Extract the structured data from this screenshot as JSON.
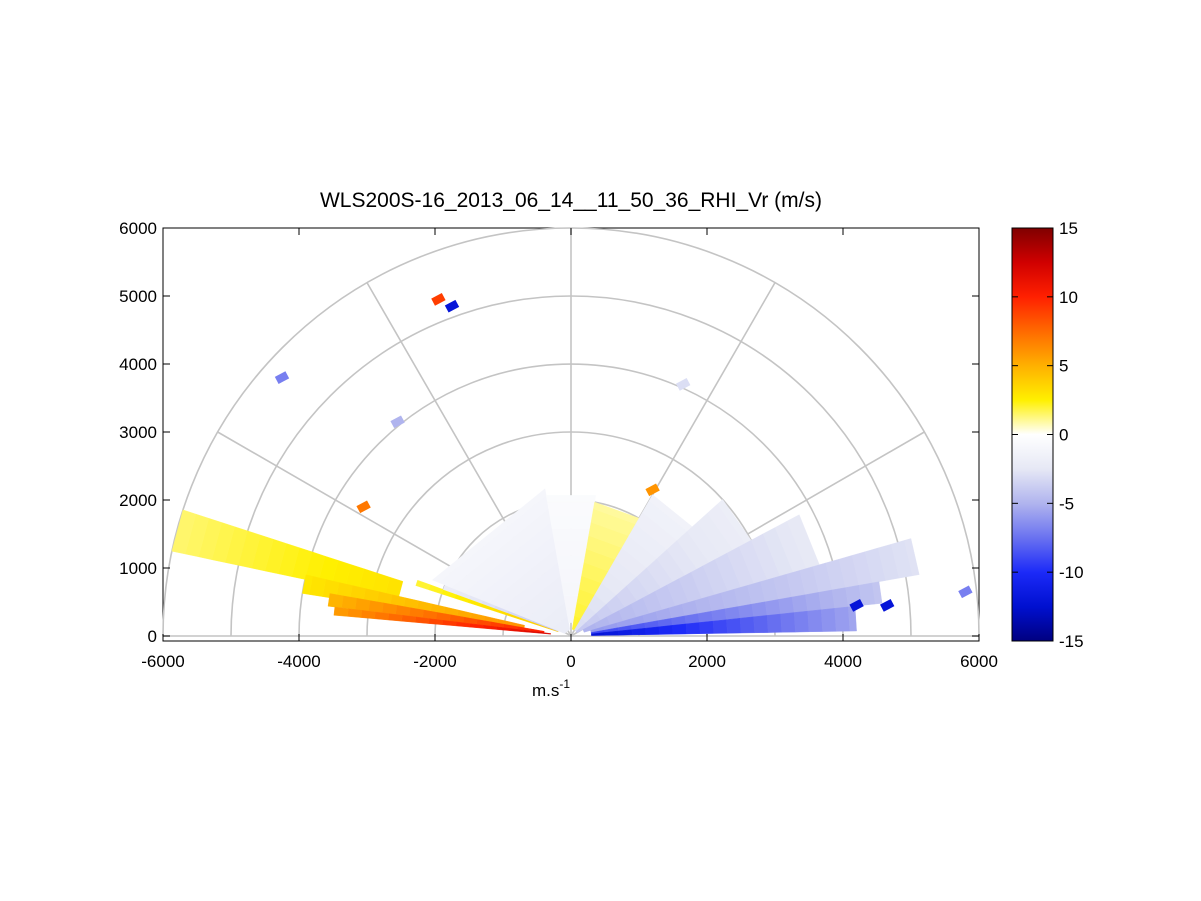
{
  "chart_data": {
    "type": "heatmap",
    "projection": "polar-rhi",
    "title": "WLS200S-16_2013_06_14__11_50_36_RHI_Vr (m/s)",
    "xlabel": "m.s",
    "xlabel_superscript": "-1",
    "ylabel": "",
    "xlim": [
      -6000,
      6000
    ],
    "ylim": [
      0,
      6000
    ],
    "x_ticks": [
      "-6000",
      "-4000",
      "-2000",
      "0",
      "2000",
      "4000",
      "6000"
    ],
    "y_ticks": [
      "0",
      "1000",
      "2000",
      "3000",
      "4000",
      "5000",
      "6000"
    ],
    "grid": {
      "range_rings": [
        1000,
        2000,
        3000,
        4000,
        5000,
        6000
      ],
      "spokes_deg": [
        0,
        30,
        60,
        90,
        120,
        150,
        180
      ],
      "color": "#c4c4c4"
    },
    "colorbar": {
      "ticks": [
        "15",
        "10",
        "5",
        "0",
        "-5",
        "-10",
        "-15"
      ],
      "range": [
        -15,
        15
      ],
      "colormap": [
        "#800000",
        "#d00000",
        "#ff2000",
        "#ff6a00",
        "#ffb000",
        "#fff000",
        "#ffffff",
        "#e6e8f5",
        "#b0b4ee",
        "#6a72f0",
        "#1c2af8",
        "#0010d0",
        "#000080"
      ]
    },
    "sectors": [
      {
        "from_deg": 162,
        "to_deg": 168,
        "range_m": [
          2600,
          6000
        ],
        "velocity_ms": 3
      },
      {
        "from_deg": 167,
        "to_deg": 171,
        "range_m": [
          700,
          4000
        ],
        "velocity_ms": 6
      },
      {
        "from_deg": 170,
        "to_deg": 173,
        "range_m": [
          400,
          3600
        ],
        "velocity_ms": 10
      },
      {
        "from_deg": 173,
        "to_deg": 175,
        "range_m": [
          300,
          3500
        ],
        "velocity_ms": 12
      },
      {
        "from_deg": 160,
        "to_deg": 162,
        "range_m": [
          200,
          2400
        ],
        "velocity_ms": 4
      },
      {
        "from_deg": 158,
        "to_deg": 160,
        "range_m": [
          200,
          2000
        ],
        "velocity_ms": -4
      },
      {
        "from_deg": 100,
        "to_deg": 158,
        "range_m": [
          100,
          2200
        ],
        "velocity_ms": -2
      },
      {
        "from_deg": 80,
        "to_deg": 100,
        "range_m": [
          200,
          2100
        ],
        "velocity_ms": -1
      },
      {
        "from_deg": 60,
        "to_deg": 80,
        "range_m": [
          100,
          2000
        ],
        "velocity_ms": 2
      },
      {
        "from_deg": 42,
        "to_deg": 60,
        "range_m": [
          100,
          2400
        ],
        "velocity_ms": -3
      },
      {
        "from_deg": 28,
        "to_deg": 42,
        "range_m": [
          100,
          3000
        ],
        "velocity_ms": -4
      },
      {
        "from_deg": 16,
        "to_deg": 28,
        "range_m": [
          200,
          3800
        ],
        "velocity_ms": -5
      },
      {
        "from_deg": 10,
        "to_deg": 16,
        "range_m": [
          300,
          5200
        ],
        "velocity_ms": -6
      },
      {
        "from_deg": 6,
        "to_deg": 10,
        "range_m": [
          300,
          4600
        ],
        "velocity_ms": -9
      },
      {
        "from_deg": 1,
        "to_deg": 6,
        "range_m": [
          300,
          4200
        ],
        "velocity_ms": -12
      }
    ],
    "points": [
      {
        "x": -1950,
        "y": 4950,
        "velocity_ms": 9
      },
      {
        "x": -1750,
        "y": 4850,
        "velocity_ms": -12
      },
      {
        "x": -4250,
        "y": 3800,
        "velocity_ms": -7
      },
      {
        "x": -2550,
        "y": 3150,
        "velocity_ms": -5
      },
      {
        "x": -3050,
        "y": 1900,
        "velocity_ms": 7
      },
      {
        "x": 1650,
        "y": 3700,
        "velocity_ms": -3
      },
      {
        "x": 5800,
        "y": 650,
        "velocity_ms": -7
      },
      {
        "x": 4650,
        "y": 450,
        "velocity_ms": -12
      },
      {
        "x": 4200,
        "y": 450,
        "velocity_ms": -12
      },
      {
        "x": 1200,
        "y": 2150,
        "velocity_ms": 6
      }
    ]
  }
}
